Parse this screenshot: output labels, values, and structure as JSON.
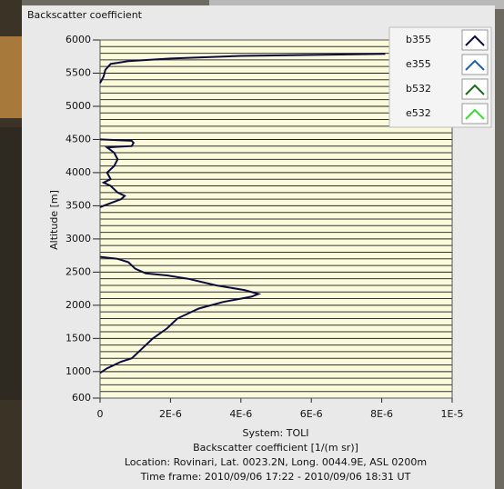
{
  "chart_data": {
    "type": "line",
    "title": "Backscatter coefficient",
    "y_label": "Altitude [m]",
    "x_label": "System: TOLI",
    "annotations": [
      "Backscatter coefficient [1/(m sr)]",
      "Location: Rovinari, Lat. 0023.2N, Long. 0044.9E, ASL 0200m",
      "Time frame: 2010/09/06 17:22 - 2010/09/06 18:31 UT"
    ],
    "xlim": [
      0,
      1e-05
    ],
    "xticks": [
      0,
      {
        "value": 2e-06,
        "label": "2E-6"
      },
      {
        "value": 4e-06,
        "label": "4E-6"
      },
      {
        "value": 6e-06,
        "label": "6E-6"
      },
      {
        "value": 8e-06,
        "label": "8E-6"
      },
      {
        "value": 1e-05,
        "label": "1E-5"
      }
    ],
    "ylim": [
      600,
      6000
    ],
    "yticks": [
      600,
      1000,
      1500,
      2000,
      2500,
      3000,
      3500,
      4000,
      4500,
      5000,
      5500,
      6000
    ],
    "grid": true,
    "minor_grid": true,
    "series": [
      {
        "name": "b355",
        "color": "#0c0c3c",
        "x": [
          8.1e-06,
          4e-06,
          2e-06,
          8e-07,
          3e-07,
          1.5e-07,
          1e-07,
          0,
          null,
          0,
          9e-07,
          9.5e-07,
          9e-07,
          2e-07,
          4e-07,
          5e-07,
          4e-07,
          2e-07,
          3e-07,
          1e-07,
          3e-07,
          5e-07,
          7e-07,
          6e-07,
          2e-07,
          0,
          null,
          0,
          5e-07,
          8e-07,
          1e-06,
          1.3e-06,
          1.9e-06,
          2.5e-06,
          3.3e-06,
          4.1e-06,
          4.5e-06,
          4.3e-06,
          3.5e-06,
          2.8e-06,
          2.2e-06,
          1.9e-06,
          1.5e-06,
          1.2e-06,
          1e-06,
          9e-07,
          6e-07,
          2e-07,
          0
        ],
        "y": [
          5790,
          5760,
          5720,
          5680,
          5640,
          5550,
          5450,
          5350,
          null,
          4500,
          4480,
          4450,
          4400,
          4380,
          4300,
          4200,
          4100,
          4000,
          3900,
          3850,
          3800,
          3700,
          3650,
          3600,
          3520,
          3480,
          null,
          2730,
          2700,
          2650,
          2550,
          2480,
          2450,
          2400,
          2300,
          2230,
          2170,
          2130,
          2050,
          1950,
          1800,
          1650,
          1500,
          1350,
          1250,
          1200,
          1150,
          1050,
          980
        ]
      },
      {
        "name": "e355",
        "color": "#1f5faa",
        "x": [],
        "y": []
      },
      {
        "name": "b532",
        "color": "#1d6b1d",
        "x": [],
        "y": []
      },
      {
        "name": "e532",
        "color": "#33e033",
        "x": [],
        "y": []
      }
    ],
    "legend": "top-right"
  }
}
